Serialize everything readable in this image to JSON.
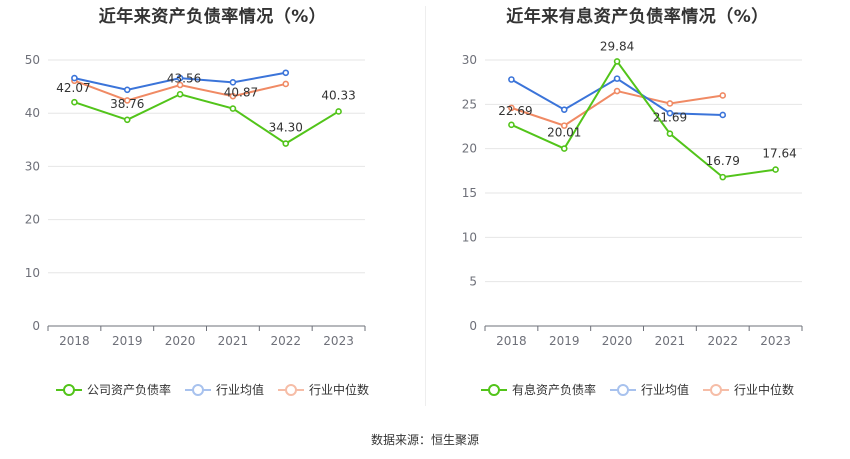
{
  "source_text": "数据来源：恒生聚源",
  "chart_data": [
    {
      "type": "line",
      "title": "近年来资产负债率情况（%）",
      "xlabel": "",
      "ylabel": "",
      "categories": [
        "2018",
        "2019",
        "2020",
        "2021",
        "2022",
        "2023"
      ],
      "ylim": [
        0,
        50
      ],
      "yticks": [
        0,
        10,
        20,
        30,
        40,
        50
      ],
      "grid": true,
      "legend_position": "bottom",
      "series": [
        {
          "name": "公司资产负债率",
          "color": "#52c41a",
          "values": [
            42.07,
            38.76,
            43.56,
            40.87,
            34.3,
            40.33
          ],
          "labels": [
            "42.07",
            "38.76",
            "43.56",
            "40.87",
            "34.30",
            "40.33"
          ]
        },
        {
          "name": "行业均值",
          "color": "#3b74d9",
          "values": [
            46.6,
            44.4,
            46.6,
            45.8,
            47.6,
            null
          ],
          "labels": []
        },
        {
          "name": "行业中位数",
          "color": "#f08a64",
          "values": [
            46.1,
            42.4,
            45.3,
            43.2,
            45.5,
            null
          ],
          "labels": []
        }
      ]
    },
    {
      "type": "line",
      "title": "近年来有息资产负债率情况（%）",
      "xlabel": "",
      "ylabel": "",
      "categories": [
        "2018",
        "2019",
        "2020",
        "2021",
        "2022",
        "2023"
      ],
      "ylim": [
        0,
        30
      ],
      "yticks": [
        0,
        5,
        10,
        15,
        20,
        25,
        30
      ],
      "grid": true,
      "legend_position": "bottom",
      "series": [
        {
          "name": "有息资产负债率",
          "color": "#52c41a",
          "values": [
            22.69,
            20.01,
            29.84,
            21.69,
            16.79,
            17.64
          ],
          "labels": [
            "22.69",
            "20.01",
            "29.84",
            "21.69",
            "16.79",
            "17.64"
          ]
        },
        {
          "name": "行业均值",
          "color": "#3b74d9",
          "values": [
            27.8,
            24.4,
            27.9,
            24.0,
            23.8,
            null
          ],
          "labels": []
        },
        {
          "name": "行业中位数",
          "color": "#f08a64",
          "values": [
            24.6,
            22.6,
            26.5,
            25.1,
            26.0,
            null
          ],
          "labels": []
        }
      ]
    }
  ]
}
